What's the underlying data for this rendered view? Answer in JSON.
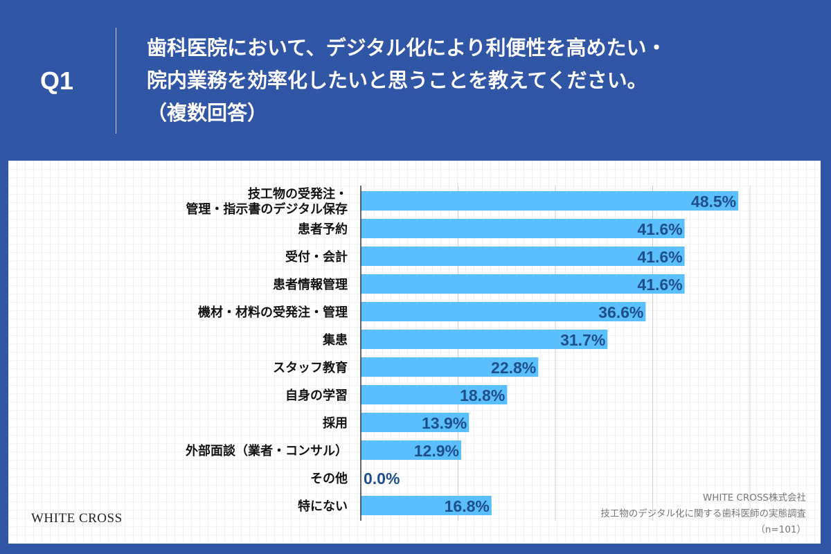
{
  "header": {
    "question_no": "Q1",
    "title": "歯科医院において、デジタル化により利便性を高めたい・\n院内業務を効率化したいと思うことを教えてください。\n（複数回答）"
  },
  "chart_data": {
    "type": "bar",
    "orientation": "horizontal",
    "categories": [
      "技工物の受発注・\n管理・指示書のデジタル保存",
      "患者予約",
      "受付・会計",
      "患者情報管理",
      "機材・材料の受発注・管理",
      "集患",
      "スタッフ教育",
      "自身の学習",
      "採用",
      "外部面談（業者・コンサル）",
      "その他",
      "特にない"
    ],
    "values": [
      48.5,
      41.6,
      41.6,
      41.6,
      36.6,
      31.7,
      22.8,
      18.8,
      13.9,
      12.9,
      0.0,
      16.8
    ],
    "labels": [
      "48.5%",
      "41.6%",
      "41.6%",
      "41.6%",
      "36.6%",
      "31.7%",
      "22.8%",
      "18.8%",
      "13.9%",
      "12.9%",
      "0.0%",
      "16.8%"
    ],
    "xlim": [
      0,
      50
    ],
    "grid_step": 12.5,
    "grid": true,
    "colors": {
      "bar": "#5bbffc",
      "label": "#1e4f8c"
    }
  },
  "footer": {
    "logo": "WHITE CROSS",
    "source": [
      "WHITE CROSS株式会社",
      "技工物のデジタル化に関する歯科医師の実態調査",
      "（n=101）"
    ]
  }
}
